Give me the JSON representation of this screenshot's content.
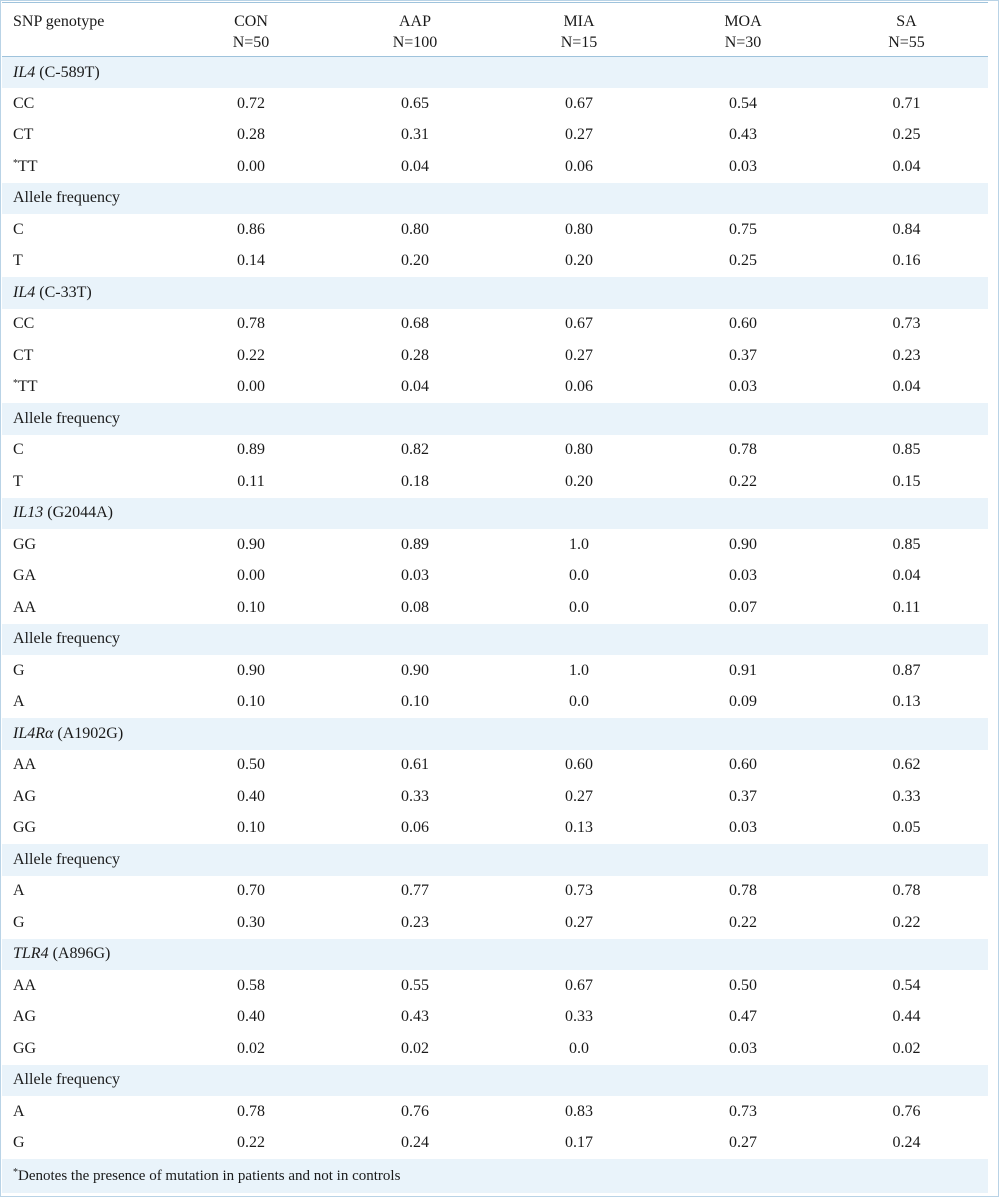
{
  "table": {
    "header": {
      "first": "SNP genotype",
      "columns": [
        {
          "name": "CON",
          "n": "N=50"
        },
        {
          "name": "AAP",
          "n": "N=100"
        },
        {
          "name": "MIA",
          "n": "N=15"
        },
        {
          "name": "MOA",
          "n": "N=30"
        },
        {
          "name": "SA",
          "n": "N=55"
        }
      ]
    },
    "rows": [
      {
        "type": "section",
        "gene": "IL4",
        "variant": " (C-589T)"
      },
      {
        "type": "data",
        "label": "CC",
        "values": [
          "0.72",
          "0.65",
          "0.67",
          "0.54",
          "0.71"
        ]
      },
      {
        "type": "data",
        "label": "CT",
        "values": [
          "0.28",
          "0.31",
          "0.27",
          "0.43",
          "0.25"
        ]
      },
      {
        "type": "data",
        "sup": "*",
        "label": "TT",
        "values": [
          "0.00",
          "0.04",
          "0.06",
          "0.03",
          "0.04"
        ]
      },
      {
        "type": "subsection",
        "label": "Allele frequency"
      },
      {
        "type": "data",
        "label": "C",
        "values": [
          "0.86",
          "0.80",
          "0.80",
          "0.75",
          "0.84"
        ]
      },
      {
        "type": "data",
        "label": "T",
        "values": [
          "0.14",
          "0.20",
          "0.20",
          "0.25",
          "0.16"
        ]
      },
      {
        "type": "section",
        "gene": "IL4",
        "variant": " (C-33T)"
      },
      {
        "type": "data",
        "label": "CC",
        "values": [
          "0.78",
          "0.68",
          "0.67",
          "0.60",
          "0.73"
        ]
      },
      {
        "type": "data",
        "label": "CT",
        "values": [
          "0.22",
          "0.28",
          "0.27",
          "0.37",
          "0.23"
        ]
      },
      {
        "type": "data",
        "sup": "*",
        "label": "TT",
        "values": [
          "0.00",
          "0.04",
          "0.06",
          "0.03",
          "0.04"
        ]
      },
      {
        "type": "subsection",
        "label": "Allele frequency"
      },
      {
        "type": "data",
        "label": "C",
        "values": [
          "0.89",
          "0.82",
          "0.80",
          "0.78",
          "0.85"
        ]
      },
      {
        "type": "data",
        "label": "T",
        "values": [
          "0.11",
          "0.18",
          "0.20",
          "0.22",
          "0.15"
        ]
      },
      {
        "type": "section",
        "gene": "IL13",
        "variant": " (G2044A)"
      },
      {
        "type": "data",
        "label": "GG",
        "values": [
          "0.90",
          "0.89",
          "1.0",
          "0.90",
          "0.85"
        ]
      },
      {
        "type": "data",
        "label": "GA",
        "values": [
          "0.00",
          "0.03",
          "0.0",
          "0.03",
          "0.04"
        ]
      },
      {
        "type": "data",
        "label": "AA",
        "values": [
          "0.10",
          "0.08",
          "0.0",
          "0.07",
          "0.11"
        ]
      },
      {
        "type": "subsection",
        "label": "Allele frequency"
      },
      {
        "type": "data",
        "label": "G",
        "values": [
          "0.90",
          "0.90",
          "1.0",
          "0.91",
          "0.87"
        ]
      },
      {
        "type": "data",
        "label": "A",
        "values": [
          "0.10",
          "0.10",
          "0.0",
          "0.09",
          "0.13"
        ]
      },
      {
        "type": "section",
        "gene": "IL4Rα",
        "variant": " (A1902G)"
      },
      {
        "type": "data",
        "label": "AA",
        "values": [
          "0.50",
          "0.61",
          "0.60",
          "0.60",
          "0.62"
        ]
      },
      {
        "type": "data",
        "label": "AG",
        "values": [
          "0.40",
          "0.33",
          "0.27",
          "0.37",
          "0.33"
        ]
      },
      {
        "type": "data",
        "label": "GG",
        "values": [
          "0.10",
          "0.06",
          "0.13",
          "0.03",
          "0.05"
        ]
      },
      {
        "type": "subsection",
        "label": "Allele frequency"
      },
      {
        "type": "data",
        "label": "A",
        "values": [
          "0.70",
          "0.77",
          "0.73",
          "0.78",
          "0.78"
        ]
      },
      {
        "type": "data",
        "label": "G",
        "values": [
          "0.30",
          "0.23",
          "0.27",
          "0.22",
          "0.22"
        ]
      },
      {
        "type": "section",
        "gene": "TLR4",
        "variant": " (A896G)"
      },
      {
        "type": "data",
        "label": "AA",
        "values": [
          "0.58",
          "0.55",
          "0.67",
          "0.50",
          "0.54"
        ]
      },
      {
        "type": "data",
        "label": "AG",
        "values": [
          "0.40",
          "0.43",
          "0.33",
          "0.47",
          "0.44"
        ]
      },
      {
        "type": "data",
        "label": "GG",
        "values": [
          "0.02",
          "0.02",
          "0.0",
          "0.03",
          "0.02"
        ]
      },
      {
        "type": "subsection",
        "label": "Allele frequency"
      },
      {
        "type": "data",
        "label": "A",
        "values": [
          "0.78",
          "0.76",
          "0.83",
          "0.73",
          "0.76"
        ]
      },
      {
        "type": "data",
        "label": "G",
        "values": [
          "0.22",
          "0.24",
          "0.17",
          "0.27",
          "0.24"
        ]
      }
    ],
    "footnote": {
      "sup": "*",
      "text": "Denotes the presence of mutation in patients and not in controls"
    }
  }
}
